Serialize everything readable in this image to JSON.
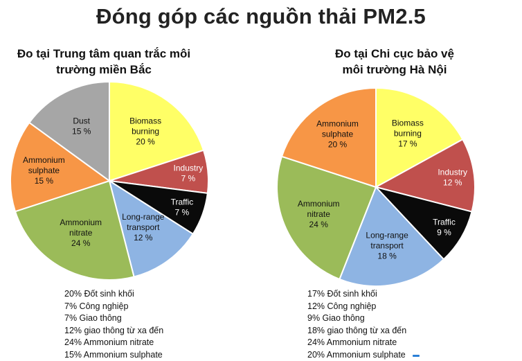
{
  "title": "Đóng góp các nguồn thải PM2.5",
  "chart_data": [
    {
      "type": "pie",
      "title_lines": [
        "Đo tại Trung tâm quan trắc môi",
        "trường miền Bắc"
      ],
      "slices": [
        {
          "name": "Biomass burning",
          "label_lines": [
            "Biomass",
            "burning"
          ],
          "value": 20,
          "pct": "20 %",
          "color": "#ffff66",
          "text_color": "#111111"
        },
        {
          "name": "Industry",
          "label_lines": [
            "Industry"
          ],
          "value": 7,
          "pct": "7 %",
          "color": "#c0504d",
          "text_color": "#ffffff"
        },
        {
          "name": "Traffic",
          "label_lines": [
            "Traffic"
          ],
          "value": 7,
          "pct": "7 %",
          "color": "#0a0a0a",
          "text_color": "#ffffff"
        },
        {
          "name": "Long-range transport",
          "label_lines": [
            "Long-range",
            "transport"
          ],
          "value": 12,
          "pct": "12 %",
          "color": "#8eb4e3",
          "text_color": "#111111"
        },
        {
          "name": "Ammonium nitrate",
          "label_lines": [
            "Ammonium",
            "nitrate"
          ],
          "value": 24,
          "pct": "24 %",
          "color": "#9bbb59",
          "text_color": "#111111"
        },
        {
          "name": "Ammonium sulphate",
          "label_lines": [
            "Ammonium",
            "sulphate"
          ],
          "value": 15,
          "pct": "15 %",
          "color": "#f79646",
          "text_color": "#111111"
        },
        {
          "name": "Dust",
          "label_lines": [
            "Dust"
          ],
          "value": 15,
          "pct": "15 %",
          "color": "#a6a6a6",
          "text_color": "#111111"
        }
      ],
      "notes": [
        "20% Đốt sinh khối",
        "7% Công nghiệp",
        "7% Giao thông",
        "12% giao thông từ xa đến",
        "24% Ammonium nitrate",
        "15% Ammonium sulphate"
      ]
    },
    {
      "type": "pie",
      "title_lines": [
        "Đo tại Chi cục bảo vệ",
        "môi trường Hà Nội"
      ],
      "slices": [
        {
          "name": "Biomass burning",
          "label_lines": [
            "Biomass",
            "burning"
          ],
          "value": 17,
          "pct": "17 %",
          "color": "#ffff66",
          "text_color": "#111111"
        },
        {
          "name": "Industry",
          "label_lines": [
            "Industry"
          ],
          "value": 12,
          "pct": "12 %",
          "color": "#c0504d",
          "text_color": "#ffffff"
        },
        {
          "name": "Traffic",
          "label_lines": [
            "Traffic"
          ],
          "value": 9,
          "pct": "9 %",
          "color": "#0a0a0a",
          "text_color": "#ffffff"
        },
        {
          "name": "Long-range transport",
          "label_lines": [
            "Long-range",
            "transport"
          ],
          "value": 18,
          "pct": "18 %",
          "color": "#8eb4e3",
          "text_color": "#111111"
        },
        {
          "name": "Ammonium nitrate",
          "label_lines": [
            "Ammonium",
            "nitrate"
          ],
          "value": 24,
          "pct": "24 %",
          "color": "#9bbb59",
          "text_color": "#111111"
        },
        {
          "name": "Ammonium sulphate",
          "label_lines": [
            "Ammonium",
            "sulphate"
          ],
          "value": 20,
          "pct": "20 %",
          "color": "#f79646",
          "text_color": "#111111"
        }
      ],
      "notes": [
        "17% Đốt sinh khối",
        "12% Công nghiệp",
        "9% Giao thông",
        "18% giao thông từ xa đến",
        "24% Ammonium nitrate",
        "20% Ammonium sulphate"
      ]
    }
  ]
}
